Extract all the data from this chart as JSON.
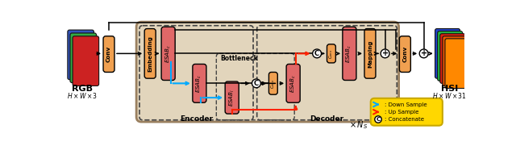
{
  "bg_outer": "#ffffff",
  "bg_main": "#e2d5bc",
  "bg_main_edge": "#9a8060",
  "orange_block": "#F0A050",
  "pink_block": "#E06868",
  "legend_bg": "#FFD700",
  "legend_edge": "#c8a800",
  "rgb_label": "RGB",
  "rgb_dim": "H \\times W \\times 3",
  "hsi_label": "HSI",
  "hsi_dim": "H \\times W \\times 31",
  "encoder_label": "Encoder",
  "decoder_label": "Decoder",
  "bottleneck_label": "Bottleneck",
  "down_sample_label": ": Down Sample",
  "up_sample_label": ": Up Sample",
  "concatenate_label": ": Concatenate",
  "cyan": "#00AAFF",
  "red": "#FF2200",
  "black": "#000000",
  "white": "#ffffff"
}
